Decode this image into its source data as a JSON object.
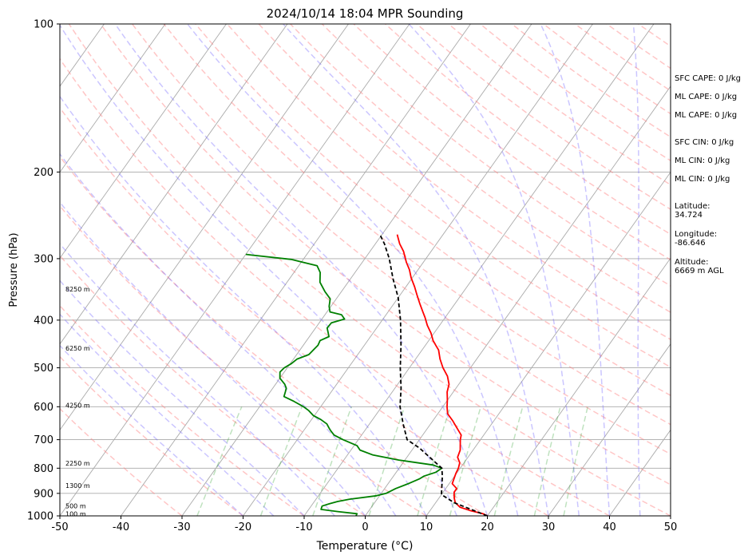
{
  "chart_data": {
    "type": "line",
    "title": "2024/10/14 18:04 MPR Sounding",
    "xlabel": "Temperature (°C)",
    "ylabel": "Pressure (hPa)",
    "xlim": [
      -50,
      50
    ],
    "ylim": [
      1000,
      100
    ],
    "y_scale": "log",
    "skew": true,
    "grid": true,
    "x_ticks": [
      -50,
      -40,
      -30,
      -20,
      -10,
      0,
      10,
      20,
      30,
      40,
      50
    ],
    "y_ticks": [
      100,
      200,
      300,
      400,
      500,
      600,
      700,
      800,
      900,
      1000
    ],
    "height_labels": [
      {
        "text": "100 m",
        "p": 990
      },
      {
        "text": "500 m",
        "p": 955
      },
      {
        "text": "1300 m",
        "p": 868
      },
      {
        "text": "2250 m",
        "p": 781
      },
      {
        "text": "4250 m",
        "p": 596
      },
      {
        "text": "6250 m",
        "p": 456
      },
      {
        "text": "8250 m",
        "p": 346
      }
    ],
    "series": [
      {
        "color": "#ff0000",
        "style": "solid",
        "points": [
          [
            20,
            1000
          ],
          [
            19,
            990
          ],
          [
            16.5,
            975
          ],
          [
            14.5,
            960
          ],
          [
            13.2,
            940
          ],
          [
            12.5,
            920
          ],
          [
            11.8,
            895
          ],
          [
            11.8,
            880
          ],
          [
            10.5,
            860
          ],
          [
            10.2,
            840
          ],
          [
            9.9,
            820
          ],
          [
            9.7,
            800
          ],
          [
            9.3,
            780
          ],
          [
            8.3,
            760
          ],
          [
            7.9,
            735
          ],
          [
            6.7,
            700
          ],
          [
            6.3,
            685
          ],
          [
            4.6,
            660
          ],
          [
            3.2,
            640
          ],
          [
            1.6,
            620
          ],
          [
            0.7,
            600
          ],
          [
            -0.1,
            580
          ],
          [
            -1.0,
            560
          ],
          [
            -1.6,
            540
          ],
          [
            -2.8,
            520
          ],
          [
            -4.5,
            500
          ],
          [
            -6.0,
            480
          ],
          [
            -7.3,
            460
          ],
          [
            -8.3,
            450
          ],
          [
            -9.3,
            440
          ],
          [
            -10.5,
            425
          ],
          [
            -12,
            410
          ],
          [
            -13.3,
            395
          ],
          [
            -14.3,
            385
          ],
          [
            -15.8,
            370
          ],
          [
            -17.3,
            355
          ],
          [
            -18.6,
            342
          ],
          [
            -20.2,
            328
          ],
          [
            -21.4,
            316
          ],
          [
            -22.8,
            305
          ],
          [
            -24.5,
            290
          ],
          [
            -26.0,
            280
          ],
          [
            -27.0,
            272
          ],
          [
            -27.5,
            268
          ]
        ]
      },
      {
        "color": "#008000",
        "style": "solid",
        "points": [
          [
            -1.5,
            1000
          ],
          [
            -1.6,
            990
          ],
          [
            -5,
            980
          ],
          [
            -8,
            970
          ],
          [
            -8.2,
            955
          ],
          [
            -7.3,
            945
          ],
          [
            -6.2,
            935
          ],
          [
            -4.5,
            925
          ],
          [
            -0.5,
            910
          ],
          [
            0.8,
            900
          ],
          [
            1.8,
            880
          ],
          [
            3.3,
            860
          ],
          [
            4.6,
            840
          ],
          [
            5.0,
            830
          ],
          [
            6.5,
            815
          ],
          [
            7.0,
            800
          ],
          [
            5.2,
            788
          ],
          [
            -1.0,
            770
          ],
          [
            -5.8,
            752
          ],
          [
            -8.5,
            735
          ],
          [
            -9.5,
            720
          ],
          [
            -12.5,
            700
          ],
          [
            -14.5,
            685
          ],
          [
            -15.5,
            672
          ],
          [
            -16.0,
            665
          ],
          [
            -17.0,
            650
          ],
          [
            -18.5,
            637
          ],
          [
            -20.2,
            625
          ],
          [
            -21.6,
            610
          ],
          [
            -22.8,
            600
          ],
          [
            -25.0,
            585
          ],
          [
            -27.2,
            572
          ],
          [
            -27.5,
            560
          ],
          [
            -27.8,
            550
          ],
          [
            -28.5,
            540
          ],
          [
            -30.0,
            525
          ],
          [
            -30.7,
            510
          ],
          [
            -30.5,
            500
          ],
          [
            -29.8,
            490
          ],
          [
            -29.4,
            480
          ],
          [
            -28.0,
            470
          ],
          [
            -27.8,
            460
          ],
          [
            -27.6,
            450
          ],
          [
            -27.8,
            440
          ],
          [
            -26.8,
            432
          ],
          [
            -28.1,
            415
          ],
          [
            -28.0,
            405
          ],
          [
            -26.3,
            398
          ],
          [
            -27.3,
            390
          ],
          [
            -29.5,
            385
          ],
          [
            -30.3,
            375
          ],
          [
            -31.0,
            362
          ],
          [
            -32.7,
            350
          ],
          [
            -34.6,
            335
          ],
          [
            -35.7,
            320
          ],
          [
            -37.0,
            310
          ],
          [
            -42,
            301
          ],
          [
            -49,
            295
          ],
          [
            -50,
            294
          ]
        ]
      },
      {
        "color": "#000000",
        "style": "dashed",
        "points": [
          [
            20,
            1000
          ],
          [
            13,
            940
          ],
          [
            10,
            905
          ],
          [
            8,
            830
          ],
          [
            7,
            800
          ],
          [
            1,
            728
          ],
          [
            -2,
            700
          ],
          [
            -4.5,
            650
          ],
          [
            -7,
            600
          ],
          [
            -9,
            550
          ],
          [
            -11.5,
            500
          ],
          [
            -14,
            450
          ],
          [
            -17,
            400
          ],
          [
            -20,
            360
          ],
          [
            -23,
            330
          ],
          [
            -26,
            300
          ],
          [
            -28.5,
            280
          ],
          [
            -30.5,
            267
          ]
        ]
      }
    ],
    "background_lines": [
      "isotherms",
      "dry adiabats",
      "moist adiabats",
      "mixing ratio lines"
    ]
  },
  "indices": {
    "sfc_cape": "SFC CAPE: 0 J/kg",
    "ml_cape_1": "ML CAPE: 0 J/kg",
    "ml_cape_2": "ML CAPE: 0 J/kg",
    "sfc_cin": "SFC CIN: 0 J/kg",
    "ml_cin_1": "ML CIN: 0 J/kg",
    "ml_cin_2": "ML CIN: 0 J/kg",
    "latitude": "Latitude:\n34.724",
    "longitude": "Longitude:\n-86.646",
    "altitude": "Altitude:\n6669 m AGL"
  }
}
